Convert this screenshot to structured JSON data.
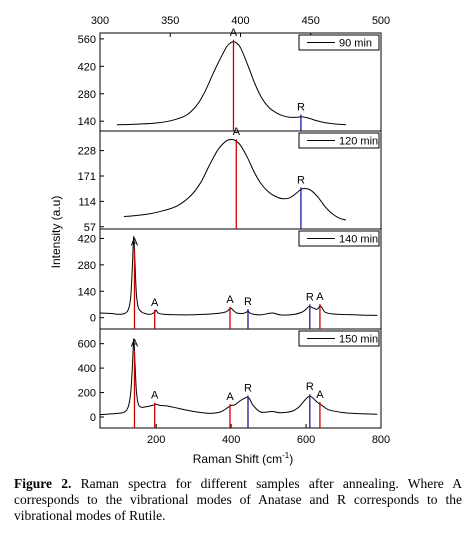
{
  "chart_data": {
    "type": "line",
    "title": "",
    "xlabel": "Raman Shift (cm",
    "xlabel_sup": "-1",
    "xlabel_end": ")",
    "ylabel": "Intensity (a.u)",
    "x_bottom_range": [
      50,
      800
    ],
    "x_bottom_ticks": [
      200,
      400,
      600,
      800
    ],
    "x_top_range": [
      300,
      500
    ],
    "x_top_ticks": [
      300,
      350,
      400,
      450,
      500
    ],
    "line_color": "#000000",
    "anatase_color": "#cc0000",
    "rutile_color": "#1a1a99",
    "panels": [
      {
        "name": "90 min",
        "legend": "90 min",
        "axis": "top",
        "ylim": [
          90,
          590
        ],
        "yticks": [
          140,
          280,
          420,
          560
        ],
        "x": [
          312,
          320,
          330,
          340,
          350,
          360,
          365,
          370,
          375,
          380,
          385,
          390,
          393,
          395,
          397,
          400,
          405,
          410,
          415,
          420,
          425,
          430,
          435,
          440,
          443,
          446,
          450,
          455,
          460,
          465,
          470,
          475
        ],
        "y": [
          122,
          123,
          126,
          131,
          142,
          165,
          190,
          232,
          295,
          375,
          450,
          518,
          540,
          545,
          540,
          515,
          430,
          335,
          260,
          212,
          185,
          168,
          160,
          160,
          163,
          160,
          152,
          141,
          133,
          128,
          124,
          122
        ],
        "markers": [
          {
            "label": "A",
            "x": 395,
            "type": "A"
          },
          {
            "label": "R",
            "x": 443,
            "type": "R"
          }
        ]
      },
      {
        "name": "120 min",
        "legend": "120 min",
        "axis": "top",
        "ylim": [
          52,
          272
        ],
        "yticks": [
          57,
          114,
          171,
          228
        ],
        "x": [
          317,
          325,
          335,
          345,
          355,
          365,
          372,
          378,
          384,
          390,
          394,
          397,
          400,
          405,
          410,
          415,
          420,
          425,
          430,
          435,
          440,
          443,
          446,
          450,
          455,
          460,
          465,
          470,
          475
        ],
        "y": [
          80,
          82,
          86,
          93,
          104,
          128,
          158,
          196,
          230,
          250,
          253,
          249,
          240,
          212,
          178,
          152,
          135,
          125,
          120,
          122,
          133,
          141,
          143,
          139,
          124,
          103,
          87,
          77,
          72
        ],
        "markers": [
          {
            "label": "A",
            "x": 397,
            "type": "A"
          },
          {
            "label": "R",
            "x": 443,
            "type": "R"
          }
        ]
      },
      {
        "name": "140 min",
        "legend": "140 min",
        "axis": "bottom",
        "ylim": [
          -60,
          470
        ],
        "yticks": [
          0,
          140,
          280,
          420
        ],
        "x": [
          50,
          80,
          100,
          115,
          125,
          132,
          137,
          140,
          143,
          147,
          152,
          160,
          170,
          185,
          195,
          200,
          205,
          220,
          260,
          300,
          350,
          385,
          395,
          400,
          405,
          415,
          430,
          440,
          445,
          450,
          460,
          480,
          510,
          530,
          550,
          570,
          590,
          600,
          605,
          610,
          620,
          630,
          637,
          642,
          650,
          670,
          700,
          730,
          760,
          790
        ],
        "y": [
          25,
          22,
          18,
          22,
          40,
          110,
          300,
          430,
          310,
          130,
          55,
          32,
          22,
          18,
          28,
          40,
          25,
          18,
          15,
          16,
          20,
          30,
          45,
          50,
          40,
          25,
          22,
          28,
          35,
          25,
          18,
          15,
          25,
          15,
          14,
          18,
          30,
          45,
          55,
          60,
          50,
          45,
          62,
          55,
          30,
          20,
          17,
          15,
          13,
          12
        ],
        "markers": [
          {
            "label": "A",
            "x": 142,
            "type": "A"
          },
          {
            "label": "A",
            "x": 196,
            "type": "A"
          },
          {
            "label": "A",
            "x": 397,
            "type": "A"
          },
          {
            "label": "R",
            "x": 445,
            "type": "R"
          },
          {
            "label": "R",
            "x": 610,
            "type": "R"
          },
          {
            "label": "A",
            "x": 637,
            "type": "A"
          }
        ]
      },
      {
        "name": "150 min",
        "legend": "150 min",
        "axis": "bottom",
        "ylim": [
          -90,
          720
        ],
        "yticks": [
          0,
          200,
          400,
          600
        ],
        "x": [
          50,
          80,
          100,
          115,
          125,
          132,
          137,
          140,
          143,
          147,
          152,
          160,
          175,
          190,
          200,
          210,
          230,
          260,
          300,
          340,
          370,
          390,
          400,
          410,
          425,
          440,
          445,
          450,
          460,
          480,
          510,
          530,
          560,
          580,
          600,
          610,
          620,
          630,
          640,
          660,
          690,
          720,
          760,
          790
        ],
        "y": [
          20,
          25,
          30,
          40,
          80,
          200,
          450,
          640,
          470,
          220,
          110,
          80,
          85,
          95,
          105,
          95,
          90,
          70,
          45,
          30,
          40,
          75,
          95,
          100,
          135,
          160,
          160,
          145,
          90,
          40,
          45,
          35,
          45,
          80,
          150,
          170,
          150,
          120,
          100,
          60,
          40,
          30,
          25,
          22
        ],
        "markers": [
          {
            "label": "A",
            "x": 142,
            "type": "A"
          },
          {
            "label": "A",
            "x": 196,
            "type": "A"
          },
          {
            "label": "A",
            "x": 397,
            "type": "A"
          },
          {
            "label": "R",
            "x": 445,
            "type": "R"
          },
          {
            "label": "R",
            "x": 610,
            "type": "R"
          },
          {
            "label": "A",
            "x": 637,
            "type": "A"
          }
        ]
      }
    ]
  },
  "caption": {
    "label": "Figure 2.",
    "text": " Raman spectra for different samples after annealing. Where A corresponds to the vibrational modes of Anatase and R corresponds to the vibrational modes of Rutile."
  }
}
